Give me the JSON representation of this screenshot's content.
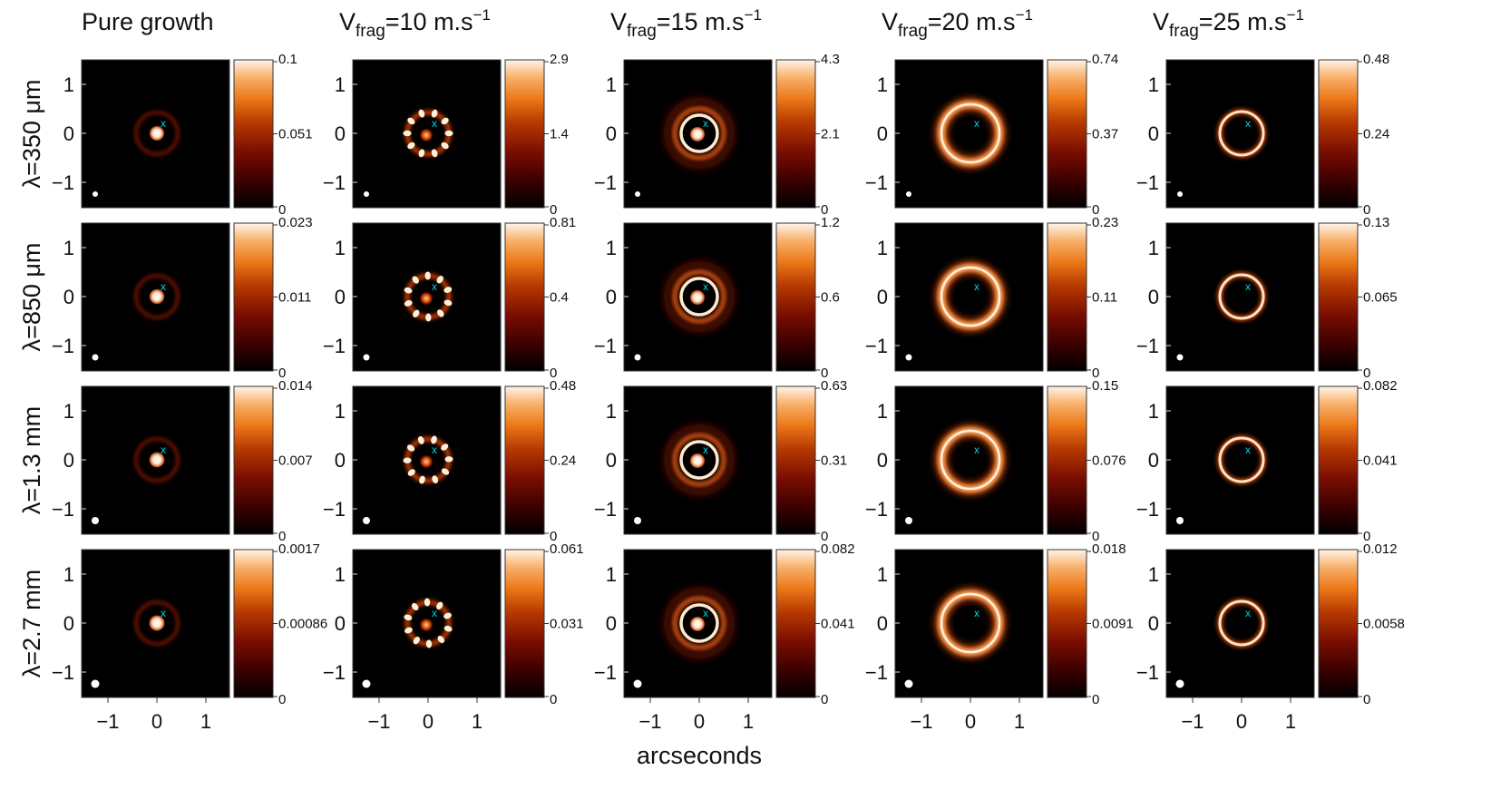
{
  "figure": {
    "xlabel": "arcseconds",
    "colormap": [
      "#000000",
      "#3a0000",
      "#7a0e00",
      "#b83a00",
      "#ec7a1a",
      "#f8b06a",
      "#fff4ea"
    ],
    "marker_color": "#00d4e0",
    "marker_symbol": "x",
    "axis_ticks": [
      "−1",
      "0",
      "1"
    ],
    "columns": [
      {
        "title_main": "Pure growth",
        "title_sub": "",
        "title_rest": "",
        "title_sup": "",
        "kind": "growth"
      },
      {
        "title_main": "V",
        "title_sub": "frag",
        "title_rest": "=10 m.s",
        "title_sup": "−1",
        "kind": "frag10"
      },
      {
        "title_main": "V",
        "title_sub": "frag",
        "title_rest": "=15 m.s",
        "title_sup": "−1",
        "kind": "frag15"
      },
      {
        "title_main": "V",
        "title_sub": "frag",
        "title_rest": "=20 m.s",
        "title_sup": "−1",
        "kind": "frag20"
      },
      {
        "title_main": "V",
        "title_sub": "frag",
        "title_rest": "=25 m.s",
        "title_sup": "−1",
        "kind": "frag25"
      }
    ],
    "rows": [
      {
        "label": "λ=350 μm"
      },
      {
        "label": "λ=850 μm"
      },
      {
        "label": "λ=1.3 mm"
      },
      {
        "label": "λ=2.7 mm"
      }
    ],
    "colorbars": [
      [
        [
          "0.1",
          "0.051",
          "0"
        ],
        [
          "2.9",
          "1.4",
          "0"
        ],
        [
          "4.3",
          "2.1",
          "0"
        ],
        [
          "0.74",
          "0.37",
          "0"
        ],
        [
          "0.48",
          "0.24",
          "0"
        ]
      ],
      [
        [
          "0.023",
          "0.011",
          "0"
        ],
        [
          "0.81",
          "0.4",
          "0"
        ],
        [
          "1.2",
          "0.6",
          "0"
        ],
        [
          "0.23",
          "0.11",
          "0"
        ],
        [
          "0.13",
          "0.065",
          "0"
        ]
      ],
      [
        [
          "0.014",
          "0.007",
          "0"
        ],
        [
          "0.48",
          "0.24",
          "0"
        ],
        [
          "0.63",
          "0.31",
          "0"
        ],
        [
          "0.15",
          "0.076",
          "0"
        ],
        [
          "0.082",
          "0.041",
          "0"
        ]
      ],
      [
        [
          "0.0017",
          "0.00086",
          "0"
        ],
        [
          "0.061",
          "0.031",
          "0"
        ],
        [
          "0.082",
          "0.041",
          "0"
        ],
        [
          "0.018",
          "0.0091",
          "0"
        ],
        [
          "0.012",
          "0.0058",
          "0"
        ]
      ]
    ]
  }
}
